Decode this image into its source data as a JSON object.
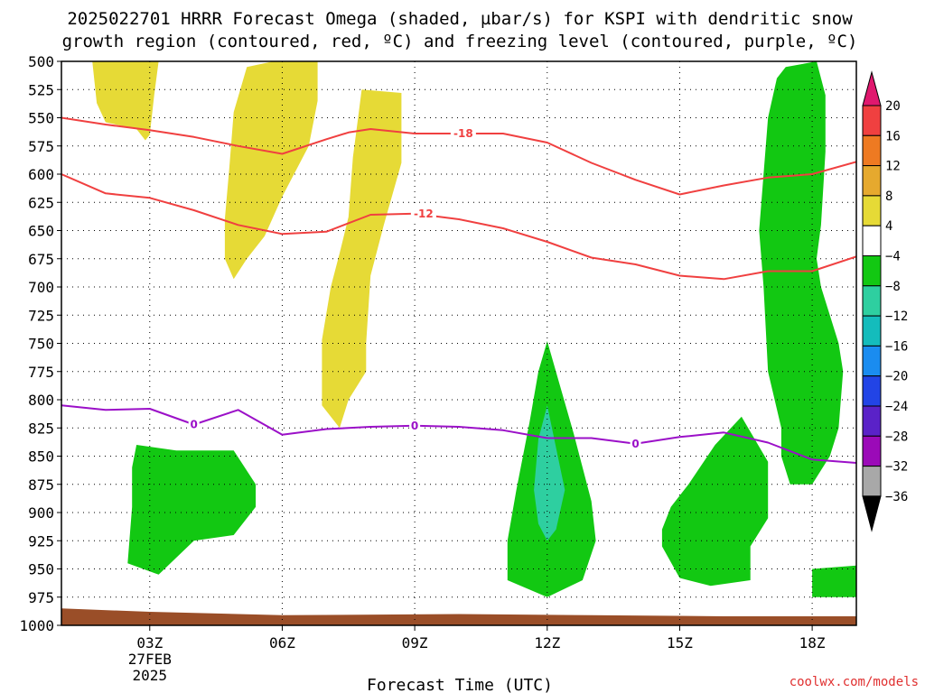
{
  "title_line1": "2025022701 HRRR Forecast Omega (shaded, µbar/s) for KSPI with dendritic snow",
  "title_line2": "growth region (contoured, red, ºC) and freezing level (contoured, purple, ºC)",
  "credit": "coolwx.com/models",
  "chart_data": {
    "type": "time-height cross section",
    "xlabel": "Forecast Time (UTC)",
    "x_range_hours": [
      1,
      19
    ],
    "x_ticks": [
      {
        "hour": 3,
        "label": "03Z",
        "date": "27FEB",
        "year": "2025"
      },
      {
        "hour": 6,
        "label": "06Z"
      },
      {
        "hour": 9,
        "label": "09Z"
      },
      {
        "hour": 12,
        "label": "12Z"
      },
      {
        "hour": 15,
        "label": "15Z"
      },
      {
        "hour": 18,
        "label": "18Z"
      }
    ],
    "ylabel": "",
    "y_range_mb": [
      1000,
      500
    ],
    "y_ticks_mb": [
      500,
      525,
      550,
      575,
      600,
      625,
      650,
      675,
      700,
      725,
      750,
      775,
      800,
      825,
      850,
      875,
      900,
      925,
      950,
      975,
      1000
    ],
    "grid": "dotted",
    "colorbar": {
      "units": "µbar/s",
      "boundaries": [
        20,
        16,
        12,
        8,
        4,
        -4,
        -8,
        -12,
        -16,
        -20,
        -24,
        -28,
        -32,
        -36
      ],
      "colors": [
        "#e0186e",
        "#f04040",
        "#ee7a22",
        "#e6a92e",
        "#e6da36",
        "#ffffff",
        "#12c812",
        "#2ecfa0",
        "#14bcbc",
        "#1a8cf0",
        "#2244e6",
        "#5a22c8",
        "#9b0ab8",
        "#a8a8a8",
        "#000000"
      ]
    },
    "contours": [
      {
        "name": "dgz_top",
        "value": -18,
        "label": "-18",
        "color": "#f04040",
        "points": [
          [
            1,
            550
          ],
          [
            2,
            556
          ],
          [
            3,
            561
          ],
          [
            4,
            567
          ],
          [
            5,
            575
          ],
          [
            6,
            582
          ],
          [
            7,
            569
          ],
          [
            7.5,
            563
          ],
          [
            8,
            560
          ],
          [
            9,
            564
          ],
          [
            10,
            564
          ],
          [
            11,
            564
          ],
          [
            12,
            572
          ],
          [
            13,
            590
          ],
          [
            14,
            605
          ],
          [
            15,
            618
          ],
          [
            16,
            610
          ],
          [
            17,
            603
          ],
          [
            18,
            600
          ],
          [
            19,
            589
          ]
        ],
        "labels": [
          [
            10.1,
            564
          ]
        ]
      },
      {
        "name": "dgz_bottom",
        "value": -12,
        "label": "-12",
        "color": "#f04040",
        "points": [
          [
            1,
            600
          ],
          [
            2,
            617
          ],
          [
            3,
            621
          ],
          [
            4,
            632
          ],
          [
            5,
            645
          ],
          [
            6,
            653
          ],
          [
            7,
            651
          ],
          [
            8,
            636
          ],
          [
            9,
            635
          ],
          [
            10,
            640
          ],
          [
            11,
            648
          ],
          [
            12,
            660
          ],
          [
            13,
            674
          ],
          [
            14,
            680
          ],
          [
            15,
            690
          ],
          [
            16,
            693
          ],
          [
            17,
            686
          ],
          [
            18,
            686
          ],
          [
            19,
            673
          ]
        ],
        "labels": [
          [
            9.2,
            635
          ]
        ]
      },
      {
        "name": "freezing_level",
        "value": 0,
        "label": "0",
        "color": "#9b10c8",
        "points": [
          [
            1,
            805
          ],
          [
            2,
            809
          ],
          [
            3,
            808
          ],
          [
            4,
            822
          ],
          [
            5,
            809
          ],
          [
            6,
            831
          ],
          [
            7,
            826
          ],
          [
            8,
            824
          ],
          [
            9,
            823
          ],
          [
            10,
            824
          ],
          [
            11,
            827
          ],
          [
            12,
            834
          ],
          [
            13,
            834
          ],
          [
            14,
            839
          ],
          [
            15,
            833
          ],
          [
            16,
            829
          ],
          [
            17,
            838
          ],
          [
            18,
            853
          ],
          [
            19,
            856
          ]
        ],
        "labels": [
          [
            4.0,
            822
          ],
          [
            9.0,
            823
          ],
          [
            14.0,
            839
          ]
        ]
      }
    ],
    "omega_regions": [
      {
        "category": "4 to 8",
        "color": "#e6da36",
        "points": [
          [
            1.7,
            500
          ],
          [
            3.2,
            500
          ],
          [
            3.1,
            530
          ],
          [
            3.0,
            565
          ],
          [
            2.9,
            570
          ],
          [
            2.7,
            560
          ],
          [
            2.0,
            554
          ],
          [
            1.8,
            537
          ]
        ]
      },
      {
        "category": "4 to 8",
        "color": "#e6da36",
        "points": [
          [
            5.2,
            505
          ],
          [
            5.8,
            500
          ],
          [
            6.8,
            500
          ],
          [
            6.8,
            535
          ],
          [
            6.6,
            575
          ],
          [
            6.0,
            620
          ],
          [
            5.6,
            655
          ],
          [
            5.2,
            675
          ],
          [
            4.9,
            693
          ],
          [
            4.7,
            675
          ],
          [
            4.7,
            640
          ],
          [
            4.8,
            595
          ],
          [
            4.9,
            545
          ]
        ]
      },
      {
        "category": "4 to 8",
        "color": "#e6da36",
        "points": [
          [
            7.8,
            525
          ],
          [
            8.7,
            528
          ],
          [
            8.7,
            590
          ],
          [
            8.3,
            645
          ],
          [
            8.0,
            690
          ],
          [
            7.9,
            750
          ],
          [
            7.9,
            775
          ],
          [
            7.5,
            800
          ],
          [
            7.3,
            825
          ],
          [
            6.9,
            805
          ],
          [
            6.9,
            747
          ],
          [
            7.1,
            700
          ],
          [
            7.3,
            670
          ],
          [
            7.5,
            638
          ],
          [
            7.6,
            585
          ],
          [
            7.7,
            555
          ]
        ]
      },
      {
        "category": "-4 to -8",
        "color": "#12c812",
        "points": [
          [
            2.7,
            840
          ],
          [
            3.6,
            845
          ],
          [
            4.9,
            845
          ],
          [
            5.4,
            875
          ],
          [
            5.4,
            895
          ],
          [
            4.9,
            920
          ],
          [
            4.0,
            925
          ],
          [
            3.2,
            955
          ],
          [
            2.5,
            945
          ],
          [
            2.6,
            895
          ],
          [
            2.6,
            860
          ]
        ]
      },
      {
        "category": "-4 to -8",
        "color": "#12c812",
        "points": [
          [
            12.0,
            748
          ],
          [
            12.6,
            830
          ],
          [
            13.0,
            890
          ],
          [
            13.1,
            925
          ],
          [
            12.8,
            960
          ],
          [
            12.0,
            975
          ],
          [
            11.1,
            960
          ],
          [
            11.1,
            925
          ],
          [
            11.3,
            880
          ],
          [
            11.6,
            820
          ],
          [
            11.8,
            775
          ]
        ]
      },
      {
        "category": "-8 to -12",
        "color": "#2ecfa0",
        "points": [
          [
            12.0,
            805
          ],
          [
            12.4,
            880
          ],
          [
            12.2,
            915
          ],
          [
            12.0,
            925
          ],
          [
            11.8,
            910
          ],
          [
            11.7,
            880
          ],
          [
            11.8,
            835
          ]
        ]
      },
      {
        "category": "-4 to -8",
        "color": "#12c812",
        "points": [
          [
            15.2,
            875
          ],
          [
            15.8,
            840
          ],
          [
            16.4,
            815
          ],
          [
            17.0,
            855
          ],
          [
            17.0,
            905
          ],
          [
            16.6,
            930
          ],
          [
            16.6,
            960
          ],
          [
            15.7,
            965
          ],
          [
            15.0,
            958
          ],
          [
            14.6,
            930
          ],
          [
            14.6,
            915
          ],
          [
            14.8,
            895
          ]
        ]
      },
      {
        "category": "-4 to -8",
        "color": "#12c812",
        "points": [
          [
            17.4,
            505
          ],
          [
            18.1,
            500
          ],
          [
            18.3,
            530
          ],
          [
            18.3,
            580
          ],
          [
            18.2,
            645
          ],
          [
            18.1,
            675
          ],
          [
            18.2,
            700
          ],
          [
            18.6,
            750
          ],
          [
            18.7,
            775
          ],
          [
            18.6,
            825
          ],
          [
            18.4,
            850
          ],
          [
            18.0,
            875
          ],
          [
            17.5,
            875
          ],
          [
            17.3,
            850
          ],
          [
            17.3,
            825
          ],
          [
            17.0,
            775
          ],
          [
            16.9,
            700
          ],
          [
            16.8,
            650
          ],
          [
            16.9,
            600
          ],
          [
            17.0,
            550
          ],
          [
            17.2,
            515
          ]
        ]
      },
      {
        "category": "-4 to -8",
        "color": "#12c812",
        "points": [
          [
            18.0,
            950
          ],
          [
            19.0,
            947
          ],
          [
            19.0,
            975
          ],
          [
            18.0,
            975
          ]
        ]
      }
    ],
    "surface": {
      "color": "#9a4e28",
      "points": [
        [
          1,
          985
        ],
        [
          3,
          988
        ],
        [
          6,
          991
        ],
        [
          10,
          990
        ],
        [
          13,
          991
        ],
        [
          16,
          992
        ],
        [
          19,
          992
        ]
      ]
    }
  }
}
